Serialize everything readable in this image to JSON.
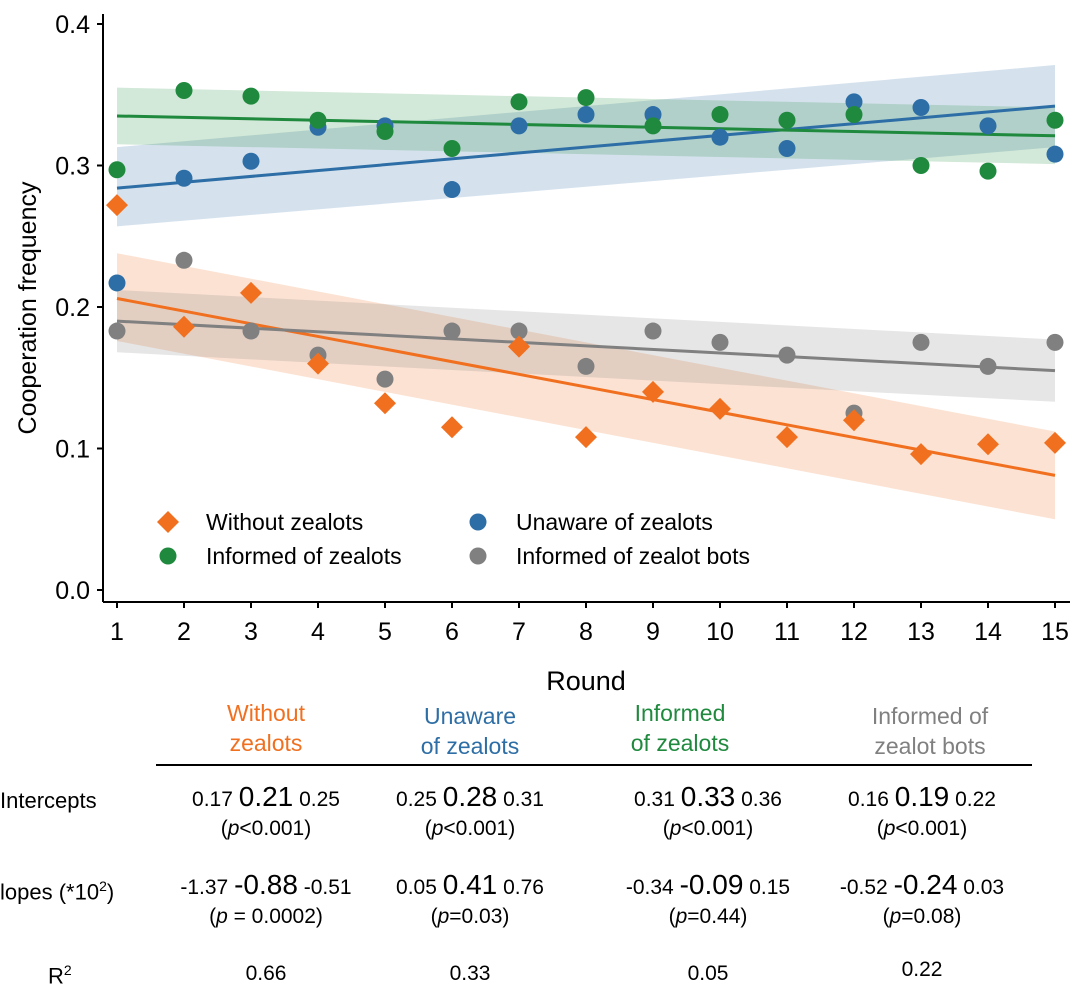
{
  "chart_data": {
    "type": "scatter",
    "xlabel": "Round",
    "ylabel": "Cooperation frequency",
    "xlim": [
      1,
      15
    ],
    "ylim": [
      0,
      0.4
    ],
    "x_ticks": [
      "1",
      "2",
      "3",
      "4",
      "5",
      "6",
      "7",
      "8",
      "9",
      "10",
      "11",
      "12",
      "13",
      "14",
      "15"
    ],
    "y_ticks": [
      "0.0",
      "0.1",
      "0.2",
      "0.3",
      "0.4"
    ],
    "legend_position": "bottom-left",
    "x": [
      1,
      2,
      3,
      4,
      5,
      6,
      7,
      8,
      9,
      10,
      11,
      12,
      13,
      14,
      15
    ],
    "series": [
      {
        "name": "Without zealots",
        "color": "#f07020",
        "marker": "diamond",
        "values": [
          0.272,
          0.186,
          0.21,
          0.16,
          0.132,
          0.115,
          0.172,
          0.108,
          0.14,
          0.128,
          0.108,
          0.12,
          0.096,
          0.103,
          0.104
        ],
        "fit": [
          0.206,
          0.081
        ],
        "band_start": [
          0.176,
          0.238
        ],
        "band_end": [
          0.05,
          0.112
        ]
      },
      {
        "name": "Unaware of zealots",
        "color": "#2e6ea6",
        "marker": "circle",
        "values": [
          0.217,
          0.291,
          0.303,
          0.327,
          0.328,
          0.283,
          0.328,
          0.336,
          0.336,
          0.32,
          0.312,
          0.345,
          0.341,
          0.328,
          0.308
        ],
        "fit": [
          0.284,
          0.342
        ],
        "band_start": [
          0.257,
          0.313
        ],
        "band_end": [
          0.313,
          0.371
        ]
      },
      {
        "name": "Informed of zealots",
        "color": "#1f8a3e",
        "marker": "circle",
        "values": [
          0.297,
          0.353,
          0.349,
          0.332,
          0.324,
          0.312,
          0.345,
          0.348,
          0.328,
          0.336,
          0.332,
          0.336,
          0.3,
          0.296,
          0.332
        ],
        "fit": [
          0.335,
          0.321
        ],
        "band_start": [
          0.315,
          0.355
        ],
        "band_end": [
          0.301,
          0.341
        ]
      },
      {
        "name": "Informed of zealot bots",
        "color": "#808080",
        "marker": "circle",
        "values": [
          0.183,
          0.233,
          0.183,
          0.166,
          0.149,
          0.183,
          0.183,
          0.158,
          0.183,
          0.175,
          0.166,
          0.125,
          0.175,
          0.158,
          0.175
        ],
        "fit": [
          0.19,
          0.155
        ],
        "band_start": [
          0.168,
          0.212
        ],
        "band_end": [
          0.133,
          0.177
        ]
      }
    ]
  },
  "table": {
    "columns": [
      {
        "line1": "Without",
        "line2": "zealots",
        "color": "#f07020"
      },
      {
        "line1": "Unaware",
        "line2": "of zealots",
        "color": "#2e6ea6"
      },
      {
        "line1": "Informed",
        "line2": "of zealots",
        "color": "#1f8a3e"
      },
      {
        "line1": "Informed of",
        "line2": "zealot bots",
        "color": "#808080"
      }
    ],
    "rows": {
      "intercepts": {
        "label": "Intercepts",
        "cells": [
          {
            "lo": "0.17",
            "mid": "0.21",
            "hi": "0.25",
            "p_italic": "p",
            "p_rest": "<0.001"
          },
          {
            "lo": "0.25",
            "mid": "0.28",
            "hi": "0.31",
            "p_italic": "p",
            "p_rest": "<0.001"
          },
          {
            "lo": "0.31",
            "mid": "0.33",
            "hi": "0.36",
            "p_italic": "p",
            "p_rest": "<0.001"
          },
          {
            "lo": "0.16",
            "mid": "0.19",
            "hi": "0.22",
            "p_italic": "p",
            "p_rest": "<0.001"
          }
        ]
      },
      "slopes": {
        "label": "lopes (*10",
        "label_sup": "2",
        "label_end": ")",
        "cells": [
          {
            "lo": "-1.37",
            "mid": "-0.88",
            "hi": "-0.51",
            "p_italic": "p",
            "p_rest": " = 0.0002"
          },
          {
            "lo": "0.05",
            "mid": "0.41",
            "hi": "0.76",
            "p_italic": "p",
            "p_rest": "=0.03"
          },
          {
            "lo": "-0.34",
            "mid": "-0.09",
            "hi": "0.15",
            "p_italic": "p",
            "p_rest": "=0.44"
          },
          {
            "lo": "-0.52",
            "mid": "-0.24",
            "hi": "0.03",
            "p_italic": "p",
            "p_rest": "=0.08"
          }
        ]
      },
      "r2": {
        "label": "R",
        "label_sup": "2",
        "values": [
          "0.66",
          "0.33",
          "0.05",
          "0.22"
        ]
      }
    }
  }
}
